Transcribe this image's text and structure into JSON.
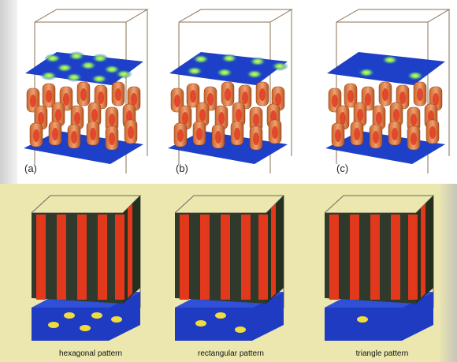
{
  "top_row": {
    "panels": [
      {
        "label": "(a)",
        "layer_pattern": "hexagonal"
      },
      {
        "label": "(b)",
        "layer_pattern": "rectangular"
      },
      {
        "label": "(c)",
        "layer_pattern": "triangle"
      }
    ]
  },
  "bottom_row": {
    "panels": [
      {
        "caption": "hexagonal pattern"
      },
      {
        "caption": "rectangular pattern"
      },
      {
        "caption": "triangle pattern"
      }
    ]
  },
  "colors": {
    "top_background": "#ffffff",
    "bottom_background": "#ebe7ae",
    "slab_blue": "#1e3fc8",
    "spot_green": "#6cd86c",
    "cylinder_orange": "#d9783a",
    "cylinder_core": "#e23a22",
    "stripe_red": "#e2381c",
    "stripe_dark": "#2f3a2c",
    "spot_yellow": "#f0dc3c"
  }
}
